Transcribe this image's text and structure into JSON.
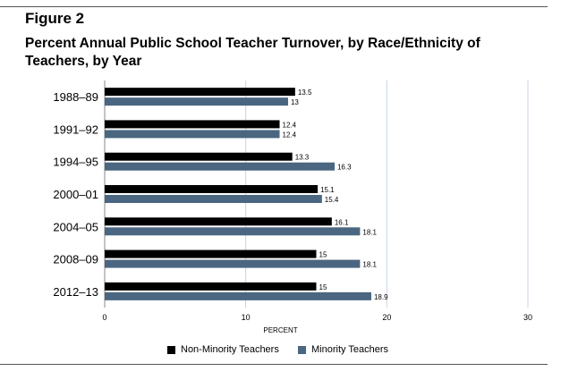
{
  "figure_label": "Figure 2",
  "title": "Percent Annual Public School Teacher Turnover, by Race/Ethnicity of Teachers, by Year",
  "chart_data": {
    "type": "bar",
    "orientation": "horizontal",
    "categories": [
      "1988–89",
      "1991–92",
      "1994–95",
      "2000–01",
      "2004–05",
      "2008–09",
      "2012–13"
    ],
    "series": [
      {
        "name": "Non-Minority Teachers",
        "color": "#000000",
        "values": [
          13.5,
          12.4,
          13.3,
          15.1,
          16.1,
          15,
          15
        ]
      },
      {
        "name": "Minority Teachers",
        "color": "#4a6680",
        "values": [
          13,
          12.4,
          16.3,
          15.4,
          18.1,
          18.1,
          18.9
        ]
      }
    ],
    "value_labels": [
      [
        "13.5",
        "12.4",
        "13.3",
        "15.1",
        "16.1",
        "15",
        "15"
      ],
      [
        "13",
        "12.4",
        "16.3",
        "15.4",
        "18.1",
        "18.1",
        "18.9"
      ]
    ],
    "xlabel": "PERCENT",
    "xlim": [
      0,
      30
    ],
    "xticks": [
      "0",
      "10",
      "20",
      "30"
    ],
    "grid": true,
    "legend_position": "bottom"
  }
}
